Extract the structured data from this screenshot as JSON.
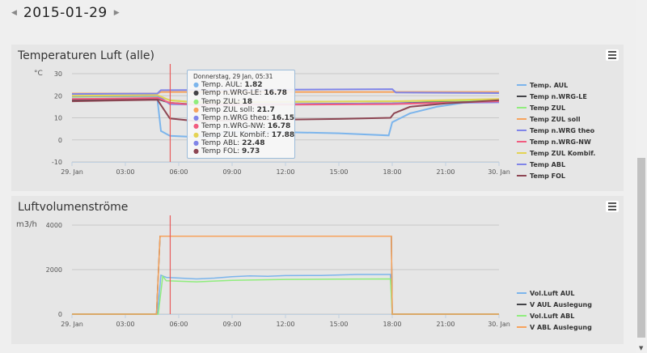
{
  "date": "2015-01-29",
  "nav": {
    "prev_icon": "caret-left-icon",
    "next_icon": "caret-right-icon"
  },
  "charts": [
    {
      "title": "Temperaturen Luft (alle)",
      "unit": "°C",
      "yticks": [
        "30",
        "20",
        "10",
        "0",
        "-10"
      ],
      "ylim": [
        -10,
        30
      ],
      "xticks": [
        "29. Jan",
        "03:00",
        "06:00",
        "09:00",
        "12:00",
        "15:00",
        "18:00",
        "21:00",
        "30. Jan"
      ],
      "tooltip": {
        "header": "Donnerstag, 29 Jan, 05:31",
        "items": [
          {
            "label": "Temp. AUL:",
            "value": "1.82"
          },
          {
            "label": "Temp n.WRG-LE:",
            "value": "16.78"
          },
          {
            "label": "Temp ZUL:",
            "value": "18"
          },
          {
            "label": "Temp ZUL soll:",
            "value": "21.7"
          },
          {
            "label": "Temp n.WRG theo:",
            "value": "16.15"
          },
          {
            "label": "Temp n.WRG-NW:",
            "value": "16.78"
          },
          {
            "label": "Temp ZUL Kombif.:",
            "value": "17.88"
          },
          {
            "label": "Temp ABL:",
            "value": "22.48"
          },
          {
            "label": "Temp FOL:",
            "value": "9.73"
          }
        ]
      },
      "series": [
        {
          "name": "Temp. AUL",
          "color": "#7cb5ec",
          "points": [
            [
              0,
              18.5
            ],
            [
              4.8,
              18.5
            ],
            [
              5.0,
              4
            ],
            [
              5.5,
              1.8
            ],
            [
              6.5,
              1.5
            ],
            [
              8,
              1.5
            ],
            [
              8.5,
              3.5
            ],
            [
              12,
              3.5
            ],
            [
              15,
              3
            ],
            [
              17.8,
              2
            ],
            [
              18,
              8
            ],
            [
              19,
              12
            ],
            [
              20.5,
              15
            ],
            [
              22,
              16.8
            ],
            [
              24,
              17.5
            ]
          ]
        },
        {
          "name": "Temp n.WRG-LE",
          "color": "#434348",
          "points": [
            [
              0,
              18
            ],
            [
              4.8,
              18.5
            ],
            [
              5.5,
              16.8
            ],
            [
              7,
              16
            ],
            [
              18,
              16.5
            ],
            [
              24,
              18
            ]
          ]
        },
        {
          "name": "Temp ZUL",
          "color": "#90ed7d",
          "points": [
            [
              0,
              19.5
            ],
            [
              4.8,
              19.8
            ],
            [
              5.5,
              18
            ],
            [
              7,
              17
            ],
            [
              18,
              17.5
            ],
            [
              24,
              18
            ]
          ]
        },
        {
          "name": "Temp ZUL soll",
          "color": "#f7a35c",
          "points": [
            [
              0,
              21
            ],
            [
              4.8,
              21
            ],
            [
              5.0,
              21.7
            ],
            [
              24,
              21.7
            ]
          ]
        },
        {
          "name": "Temp n.WRG theo",
          "color": "#8085e9",
          "points": [
            [
              0,
              19.8
            ],
            [
              4.8,
              20
            ],
            [
              5.5,
              16.2
            ],
            [
              7,
              16
            ],
            [
              18,
              16.5
            ],
            [
              24,
              17
            ]
          ]
        },
        {
          "name": "Temp n.WRG-NW",
          "color": "#f15c80",
          "points": [
            [
              0,
              18.5
            ],
            [
              4.8,
              19
            ],
            [
              5.5,
              16.8
            ],
            [
              7,
              15.8
            ],
            [
              18,
              16.2
            ],
            [
              24,
              17.5
            ]
          ]
        },
        {
          "name": "Temp ZUL Kombif.",
          "color": "#e4d354",
          "points": [
            [
              0,
              20
            ],
            [
              4.8,
              20.3
            ],
            [
              5.5,
              17.9
            ],
            [
              7,
              17
            ],
            [
              18,
              17.5
            ],
            [
              24,
              18.5
            ]
          ]
        },
        {
          "name": "Temp ABL",
          "color": "#8085e8",
          "points": [
            [
              0,
              20.8
            ],
            [
              4.8,
              21
            ],
            [
              5.0,
              22.5
            ],
            [
              18,
              23
            ],
            [
              18.2,
              21.5
            ],
            [
              24,
              21.2
            ]
          ]
        },
        {
          "name": "Temp FOL",
          "color": "#8d4653",
          "points": [
            [
              0,
              17.5
            ],
            [
              4.8,
              18.2
            ],
            [
              5.5,
              9.7
            ],
            [
              7,
              8.5
            ],
            [
              10,
              9
            ],
            [
              15,
              9.5
            ],
            [
              17.9,
              10
            ],
            [
              18.1,
              12
            ],
            [
              19,
              15
            ],
            [
              21,
              16.5
            ],
            [
              24,
              18
            ]
          ]
        }
      ]
    },
    {
      "title": "Luftvolumenströme",
      "unit": "m3/h",
      "yticks": [
        "4000",
        "2000",
        "0"
      ],
      "ylim": [
        0,
        4000
      ],
      "xticks": [
        "29. Jan",
        "03:00",
        "06:00",
        "09:00",
        "12:00",
        "15:00",
        "18:00",
        "21:00",
        "30. Jan"
      ],
      "series": [
        {
          "name": "Vol.Luft AUL",
          "color": "#7cb5ec",
          "points": [
            [
              0,
              0
            ],
            [
              4.8,
              0
            ],
            [
              5.0,
              1750
            ],
            [
              5.3,
              1650
            ],
            [
              7,
              1580
            ],
            [
              8,
              1620
            ],
            [
              9,
              1680
            ],
            [
              10,
              1720
            ],
            [
              11,
              1700
            ],
            [
              12,
              1730
            ],
            [
              14,
              1740
            ],
            [
              16,
              1780
            ],
            [
              17.9,
              1780
            ],
            [
              18,
              0
            ],
            [
              24,
              0
            ]
          ]
        },
        {
          "name": "V AUL Auslegung",
          "color": "#434348",
          "points": [
            [
              0,
              0
            ],
            [
              4.75,
              0
            ],
            [
              4.95,
              3500
            ],
            [
              17.95,
              3500
            ],
            [
              18,
              0
            ],
            [
              24,
              0
            ]
          ]
        },
        {
          "name": "Vol.Luft ABL",
          "color": "#90ed7d",
          "points": [
            [
              0,
              0
            ],
            [
              4.85,
              0
            ],
            [
              5.1,
              1700
            ],
            [
              5.3,
              1500
            ],
            [
              7,
              1450
            ],
            [
              9,
              1520
            ],
            [
              12,
              1560
            ],
            [
              15,
              1570
            ],
            [
              17.9,
              1580
            ],
            [
              18,
              0
            ],
            [
              24,
              0
            ]
          ]
        },
        {
          "name": "V ABL Auslegung",
          "color": "#f7a35c",
          "points": [
            [
              0,
              0
            ],
            [
              4.75,
              0
            ],
            [
              4.95,
              3500
            ],
            [
              17.95,
              3500
            ],
            [
              18,
              0
            ],
            [
              24,
              0
            ]
          ]
        }
      ]
    }
  ],
  "crosshair_hour": 5.52
}
